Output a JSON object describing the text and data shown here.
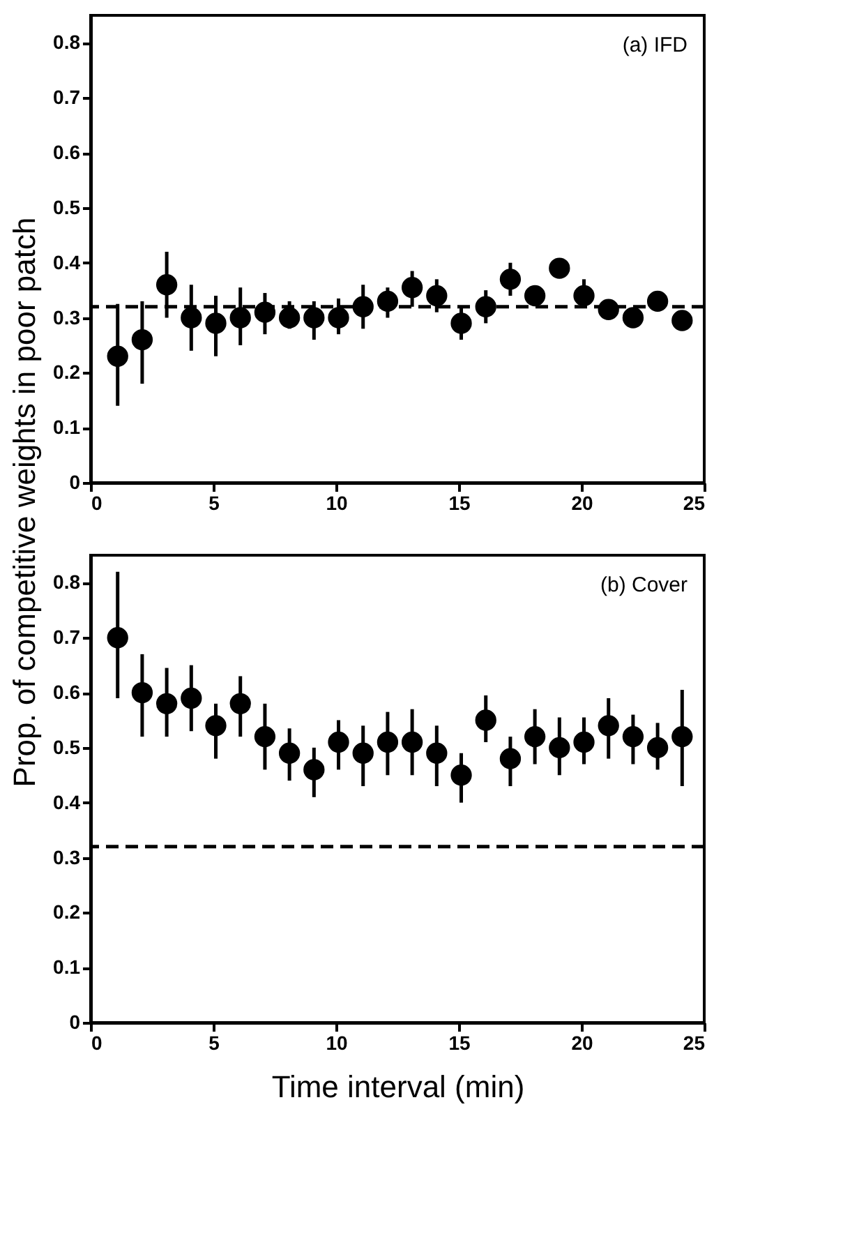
{
  "chart_data": [
    {
      "type": "scatter",
      "ylabel": "Prop. of competitive weights in poor patch",
      "annotations": [
        "(a) IFD"
      ],
      "marker": "circle",
      "grid": false,
      "x": [
        1.1,
        2.1,
        3.1,
        4.1,
        5.1,
        6.1,
        7.1,
        8.1,
        9.1,
        10.1,
        11.1,
        12.1,
        13.1,
        14.1,
        15.1,
        16.1,
        17.1,
        18.1,
        19.1,
        20.1,
        21.1,
        22.1,
        23.1,
        24.1
      ],
      "series": [
        {
          "color": "#000000",
          "values": [
            0.23,
            0.26,
            0.36,
            0.3,
            0.29,
            0.3,
            0.31,
            0.3,
            0.3,
            0.3,
            0.32,
            0.33,
            0.355,
            0.34,
            0.29,
            0.32,
            0.37,
            0.34,
            0.39,
            0.34,
            0.315,
            0.3,
            0.33,
            0.295
          ],
          "errors": [
            [
              0.14,
              0.325
            ],
            [
              0.18,
              0.33
            ],
            [
              0.3,
              0.42
            ],
            [
              0.24,
              0.36
            ],
            [
              0.23,
              0.34
            ],
            [
              0.25,
              0.355
            ],
            [
              0.27,
              0.345
            ],
            [
              0.28,
              0.33
            ],
            [
              0.26,
              0.33
            ],
            [
              0.27,
              0.335
            ],
            [
              0.28,
              0.36
            ],
            [
              0.3,
              0.355
            ],
            [
              0.32,
              0.385
            ],
            [
              0.31,
              0.37
            ],
            [
              0.26,
              0.32
            ],
            [
              0.29,
              0.35
            ],
            [
              0.34,
              0.4
            ],
            null,
            null,
            [
              0.32,
              0.37
            ],
            null,
            null,
            null,
            null
          ]
        }
      ],
      "ref_lines": [
        {
          "axis": "y",
          "value": 0.32,
          "line_style": "dashed",
          "color": "#000000"
        }
      ],
      "xlim": [
        0,
        25
      ],
      "xticks": [
        0,
        5,
        10,
        15,
        20,
        25
      ],
      "ylim": [
        0,
        0.85
      ],
      "yticks": [
        0,
        0.1,
        0.2,
        0.3,
        0.4,
        0.5,
        0.6,
        0.7,
        0.8
      ]
    },
    {
      "type": "scatter",
      "xlabel": "Time interval (min)",
      "annotations": [
        "(b) Cover"
      ],
      "marker": "circle",
      "grid": false,
      "x": [
        1.1,
        2.1,
        3.1,
        4.1,
        5.1,
        6.1,
        7.1,
        8.1,
        9.1,
        10.1,
        11.1,
        12.1,
        13.1,
        14.1,
        15.1,
        16.1,
        17.1,
        18.1,
        19.1,
        20.1,
        21.1,
        22.1,
        23.1,
        24.1
      ],
      "series": [
        {
          "color": "#000000",
          "values": [
            0.7,
            0.6,
            0.58,
            0.59,
            0.54,
            0.58,
            0.52,
            0.49,
            0.46,
            0.51,
            0.49,
            0.51,
            0.51,
            0.49,
            0.45,
            0.55,
            0.48,
            0.52,
            0.5,
            0.51,
            0.54,
            0.52,
            0.5,
            0.52
          ],
          "errors": [
            [
              0.59,
              0.82
            ],
            [
              0.52,
              0.67
            ],
            [
              0.52,
              0.645
            ],
            [
              0.53,
              0.65
            ],
            [
              0.48,
              0.58
            ],
            [
              0.52,
              0.63
            ],
            [
              0.46,
              0.58
            ],
            [
              0.44,
              0.535
            ],
            [
              0.41,
              0.5
            ],
            [
              0.46,
              0.55
            ],
            [
              0.43,
              0.54
            ],
            [
              0.45,
              0.565
            ],
            [
              0.45,
              0.57
            ],
            [
              0.43,
              0.54
            ],
            [
              0.4,
              0.49
            ],
            [
              0.51,
              0.595
            ],
            [
              0.43,
              0.52
            ],
            [
              0.47,
              0.57
            ],
            [
              0.45,
              0.555
            ],
            [
              0.47,
              0.555
            ],
            [
              0.48,
              0.59
            ],
            [
              0.47,
              0.56
            ],
            [
              0.46,
              0.545
            ],
            [
              0.43,
              0.605
            ]
          ]
        }
      ],
      "ref_lines": [
        {
          "axis": "y",
          "value": 0.32,
          "line_style": "dashed",
          "color": "#000000"
        }
      ],
      "xlim": [
        0,
        25
      ],
      "xticks": [
        0,
        5,
        10,
        15,
        20,
        25
      ],
      "ylim": [
        0,
        0.85
      ],
      "yticks": [
        0,
        0.1,
        0.2,
        0.3,
        0.4,
        0.5,
        0.6,
        0.7,
        0.8
      ]
    }
  ]
}
